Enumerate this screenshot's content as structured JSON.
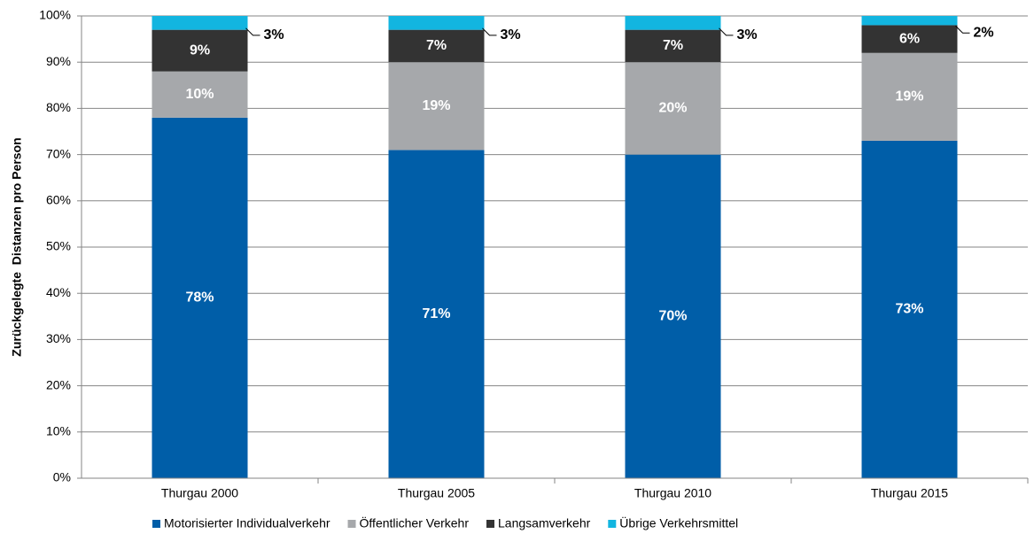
{
  "chart_data": {
    "type": "stacked_bar",
    "ylabel": "Zurückgelegte  Distanzen pro Person",
    "categories": [
      "Thurgau 2000",
      "Thurgau 2005",
      "Thurgau 2010",
      "Thurgau 2015"
    ],
    "series": [
      {
        "name": "Motorisierter Individualverkehr",
        "color": "#005ea8",
        "values": [
          78,
          71,
          70,
          73
        ],
        "value_labels": [
          "78%",
          "71%",
          "70%",
          "73%"
        ]
      },
      {
        "name": "Öffentlicher Verkehr",
        "color": "#a6a8ab",
        "values": [
          10,
          19,
          20,
          19
        ],
        "value_labels": [
          "10%",
          "19%",
          "20%",
          "19%"
        ]
      },
      {
        "name": "Langsamverkehr",
        "color": "#333333",
        "values": [
          9,
          7,
          7,
          6
        ],
        "value_labels": [
          "9%",
          "7%",
          "7%",
          "6%"
        ]
      },
      {
        "name": "Übrige Verkehrsmittel",
        "color": "#12b5e0",
        "values": [
          3,
          3,
          3,
          2
        ],
        "value_labels": [
          "3%",
          "3%",
          "3%",
          "2%"
        ]
      }
    ],
    "ylim": [
      0,
      100
    ],
    "yticks": [
      {
        "value": 0,
        "label": "0%"
      },
      {
        "value": 10,
        "label": "10%"
      },
      {
        "value": 20,
        "label": "20%"
      },
      {
        "value": 30,
        "label": "30%"
      },
      {
        "value": 40,
        "label": "40%"
      },
      {
        "value": 50,
        "label": "50%"
      },
      {
        "value": 60,
        "label": "60%"
      },
      {
        "value": 70,
        "label": "70%"
      },
      {
        "value": 80,
        "label": "80%"
      },
      {
        "value": 90,
        "label": "90%"
      },
      {
        "value": 100,
        "label": "100%"
      }
    ],
    "grid": true,
    "legend": "bottom"
  }
}
